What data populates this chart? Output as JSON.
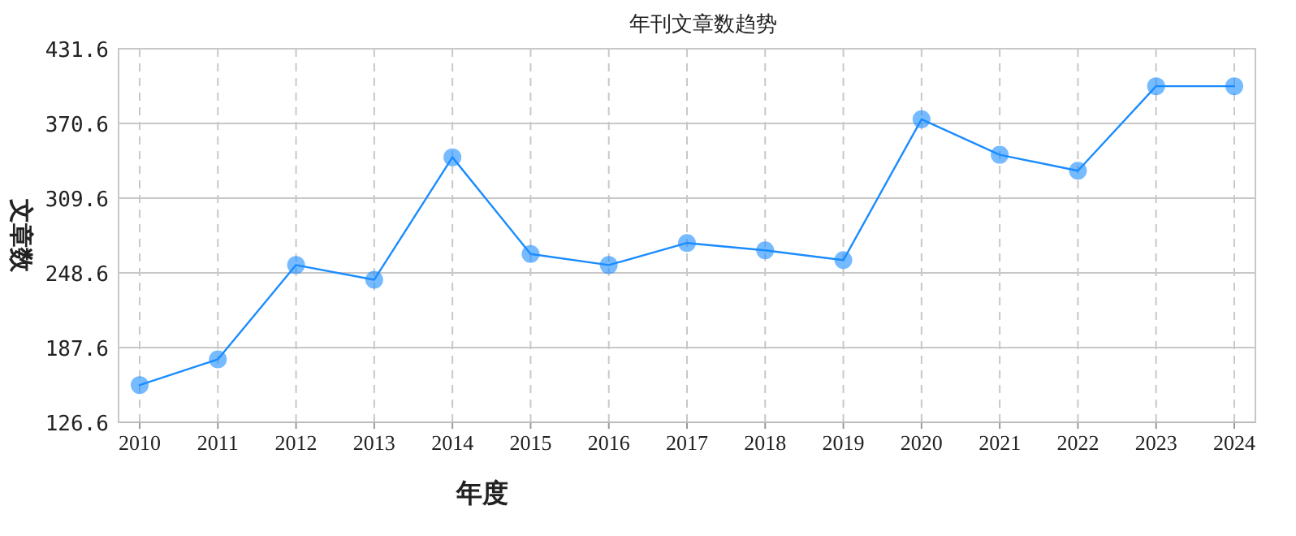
{
  "chart_data": {
    "type": "line",
    "title": "年刊文章数趋势",
    "xlabel": "年度",
    "ylabel": "文章数",
    "categories": [
      "2010",
      "2011",
      "2012",
      "2013",
      "2014",
      "2015",
      "2016",
      "2017",
      "2018",
      "2019",
      "2020",
      "2021",
      "2022",
      "2023",
      "2024"
    ],
    "series": [
      {
        "color": "#1a8cff",
        "values": [
          157,
          178,
          255,
          243,
          343,
          264,
          255,
          273,
          267,
          259,
          374,
          345,
          332,
          401,
          401
        ]
      }
    ],
    "ylim": [
      126.6,
      431.6
    ],
    "yticks": [
      126.6,
      187.6,
      248.6,
      309.6,
      370.6,
      431.6
    ],
    "grid": true,
    "marker": "circle",
    "line_style": "solid"
  }
}
